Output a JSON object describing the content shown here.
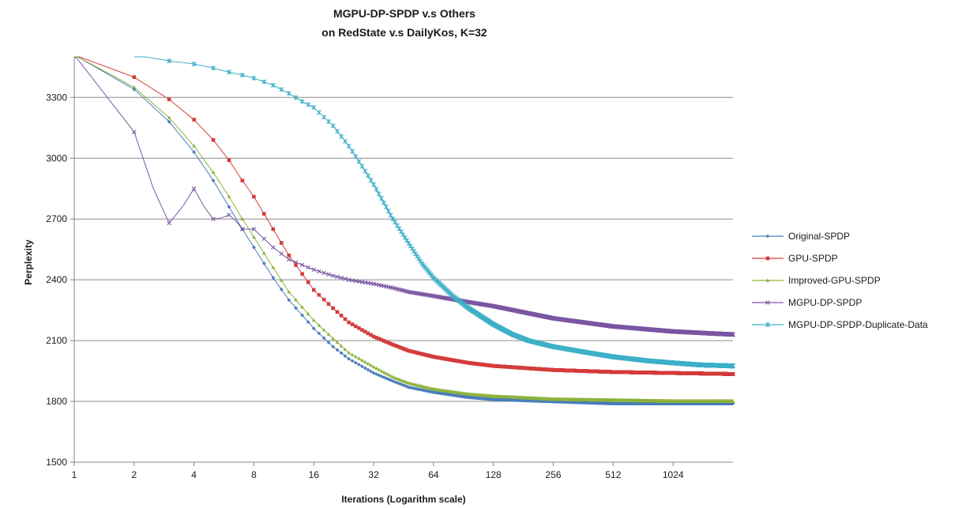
{
  "chart_data": {
    "type": "line",
    "title": [
      "MGPU-DP-SPDP  v.s  Others",
      "on RedState v.s DailyKos, K=32"
    ],
    "xlabel": "Iterations (Logarithm scale)",
    "ylabel": "Perplexity",
    "xscale": "log2",
    "xlim": [
      1,
      2048
    ],
    "ylim": [
      1500,
      3500
    ],
    "x_ticks": [
      1,
      2,
      4,
      8,
      16,
      32,
      64,
      128,
      256,
      512,
      1024
    ],
    "x_tick_labels": [
      "1",
      "2",
      "4",
      "8",
      "16",
      "32",
      "64",
      "128",
      "256",
      "512",
      "1024"
    ],
    "y_ticks": [
      1500,
      1800,
      2100,
      2400,
      2700,
      3000,
      3300
    ],
    "y_tick_labels": [
      "1500",
      "1800",
      "2100",
      "2400",
      "2700",
      "3000",
      "3300"
    ],
    "grid": "horizontal",
    "legend_position": "right",
    "series": [
      {
        "name": "Original-SPDP",
        "color": "#4a7ebb",
        "marker": "diamond",
        "points": [
          [
            1,
            3510
          ],
          [
            2,
            3340
          ],
          [
            3,
            3180
          ],
          [
            4,
            3030
          ],
          [
            5,
            2890
          ],
          [
            6,
            2760
          ],
          [
            7,
            2650
          ],
          [
            8,
            2560
          ],
          [
            10,
            2410
          ],
          [
            12,
            2300
          ],
          [
            16,
            2160
          ],
          [
            20,
            2070
          ],
          [
            24,
            2010
          ],
          [
            32,
            1940
          ],
          [
            40,
            1900
          ],
          [
            48,
            1870
          ],
          [
            64,
            1845
          ],
          [
            96,
            1820
          ],
          [
            128,
            1810
          ],
          [
            256,
            1800
          ],
          [
            512,
            1790
          ],
          [
            1024,
            1790
          ],
          [
            1400,
            1790
          ],
          [
            2048,
            1790
          ]
        ]
      },
      {
        "name": "GPU-SPDP",
        "color": "#d43c3c",
        "marker": "square",
        "points": [
          [
            1,
            3510
          ],
          [
            2,
            3400
          ],
          [
            3,
            3290
          ],
          [
            4,
            3190
          ],
          [
            5,
            3090
          ],
          [
            6,
            2990
          ],
          [
            7,
            2890
          ],
          [
            8,
            2810
          ],
          [
            10,
            2650
          ],
          [
            12,
            2520
          ],
          [
            16,
            2350
          ],
          [
            20,
            2260
          ],
          [
            24,
            2190
          ],
          [
            32,
            2120
          ],
          [
            40,
            2080
          ],
          [
            48,
            2050
          ],
          [
            64,
            2020
          ],
          [
            96,
            1990
          ],
          [
            128,
            1975
          ],
          [
            256,
            1955
          ],
          [
            512,
            1945
          ],
          [
            1024,
            1940
          ],
          [
            2048,
            1935
          ]
        ]
      },
      {
        "name": "Improved-GPU-SPDP",
        "color": "#8db33e",
        "marker": "triangle",
        "points": [
          [
            1,
            3510
          ],
          [
            2,
            3350
          ],
          [
            3,
            3200
          ],
          [
            4,
            3060
          ],
          [
            5,
            2930
          ],
          [
            6,
            2810
          ],
          [
            7,
            2700
          ],
          [
            8,
            2610
          ],
          [
            10,
            2460
          ],
          [
            12,
            2340
          ],
          [
            16,
            2200
          ],
          [
            20,
            2110
          ],
          [
            24,
            2040
          ],
          [
            32,
            1970
          ],
          [
            40,
            1920
          ],
          [
            48,
            1890
          ],
          [
            64,
            1860
          ],
          [
            96,
            1835
          ],
          [
            128,
            1825
          ],
          [
            256,
            1810
          ],
          [
            512,
            1805
          ],
          [
            1024,
            1800
          ],
          [
            2048,
            1800
          ]
        ]
      },
      {
        "name": "MGPU-DP-SPDP",
        "color": "#7b57a3",
        "marker": "x",
        "points": [
          [
            1,
            3510
          ],
          [
            2,
            3130
          ],
          [
            2.5,
            2850
          ],
          [
            3,
            2680
          ],
          [
            3.5,
            2760
          ],
          [
            4,
            2850
          ],
          [
            4.5,
            2760
          ],
          [
            5,
            2700
          ],
          [
            5.5,
            2705
          ],
          [
            6,
            2720
          ],
          [
            6.5,
            2690
          ],
          [
            7,
            2650
          ],
          [
            8,
            2650
          ],
          [
            10,
            2560
          ],
          [
            12,
            2500
          ],
          [
            16,
            2450
          ],
          [
            20,
            2420
          ],
          [
            24,
            2400
          ],
          [
            32,
            2380
          ],
          [
            40,
            2360
          ],
          [
            48,
            2340
          ],
          [
            64,
            2320
          ],
          [
            96,
            2290
          ],
          [
            128,
            2270
          ],
          [
            256,
            2210
          ],
          [
            512,
            2170
          ],
          [
            1024,
            2145
          ],
          [
            2048,
            2130
          ]
        ]
      },
      {
        "name": "MGPU-DP-SPDP-Duplicate-Data",
        "color": "#3fb0c8",
        "marker": "asterisk",
        "points": [
          [
            2,
            3510
          ],
          [
            3,
            3480
          ],
          [
            4,
            3465
          ],
          [
            5,
            3445
          ],
          [
            6,
            3425
          ],
          [
            7,
            3410
          ],
          [
            8,
            3395
          ],
          [
            10,
            3360
          ],
          [
            12,
            3320
          ],
          [
            14,
            3280
          ],
          [
            16,
            3250
          ],
          [
            20,
            3160
          ],
          [
            24,
            3060
          ],
          [
            28,
            2960
          ],
          [
            32,
            2870
          ],
          [
            36,
            2780
          ],
          [
            40,
            2700
          ],
          [
            48,
            2580
          ],
          [
            56,
            2480
          ],
          [
            64,
            2410
          ],
          [
            80,
            2320
          ],
          [
            96,
            2260
          ],
          [
            128,
            2180
          ],
          [
            160,
            2130
          ],
          [
            192,
            2100
          ],
          [
            256,
            2070
          ],
          [
            384,
            2040
          ],
          [
            512,
            2020
          ],
          [
            768,
            2000
          ],
          [
            1024,
            1990
          ],
          [
            1400,
            1980
          ],
          [
            2048,
            1975
          ]
        ]
      }
    ]
  }
}
